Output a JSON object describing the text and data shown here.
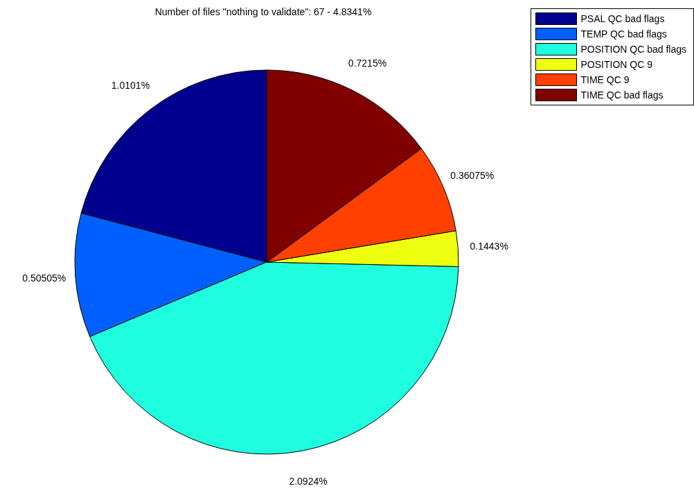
{
  "chart_data": {
    "type": "pie",
    "title": "Number of files \"nothing to validate\": 67 - 4.8341%",
    "categories": [
      "PSAL QC bad flags",
      "TEMP QC bad flags",
      "POSITION QC bad flags",
      "POSITION QC 9",
      "TIME QC 9",
      "TIME QC bad flags"
    ],
    "values": [
      1.0101,
      0.50505,
      2.0924,
      0.1443,
      0.36075,
      0.7215
    ],
    "value_labels": [
      "1.0101%",
      "0.50505%",
      "2.0924%",
      "0.1443%",
      "0.36075%",
      "0.7215%"
    ],
    "colors": [
      "#00008f",
      "#0060ff",
      "#1fffdf",
      "#efff10",
      "#ff4000",
      "#800000"
    ],
    "legend": "top right"
  }
}
